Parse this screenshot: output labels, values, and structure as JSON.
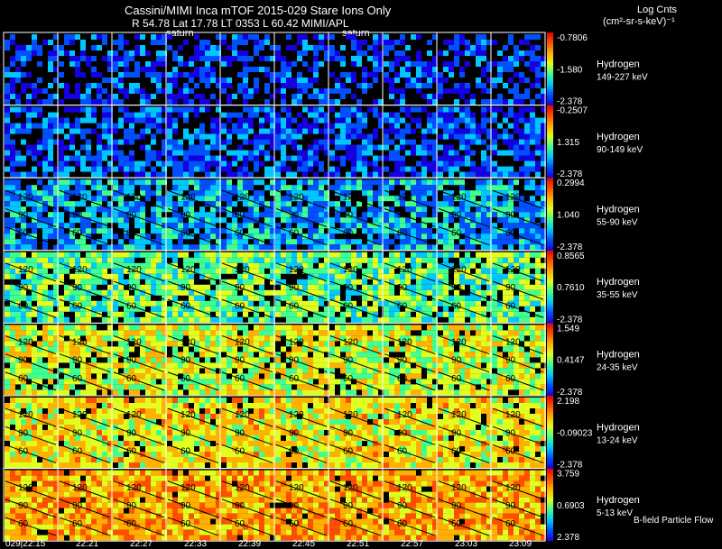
{
  "header": {
    "title_line1": "Cassini/MIMI Inca mTOF  2015-029   Stare   Ions Only",
    "title_line2": "R          54.78 Lat 17.78 LT 0353 L          60.42  MIMI/APL",
    "units_line1": "Log Cnts",
    "units_line2": "(cm²-sr-s-keV)⁻¹",
    "saturn_marks": [
      "saturn",
      "saturn"
    ],
    "flow_label": "B-field Particle Flow"
  },
  "chart_data": {
    "type": "heatmap",
    "title": "Cassini/MIMI Inca mTOF  2015-029   Stare   Ions Only",
    "time_ticks": [
      "029|22:15",
      "22:21",
      "22:27",
      "22:33",
      "22:39",
      "22:45",
      "22:51",
      "22:57",
      "23:03",
      "23:09"
    ],
    "pitch_angle_contours": [
      "120",
      "90",
      "60"
    ],
    "colors": {
      "scale": [
        "#1400e0",
        "#0050ff",
        "#00c8ff",
        "#40ff90",
        "#e0ff20",
        "#ffb000",
        "#ff5000",
        "#e00000"
      ],
      "background": "#000000",
      "grid": "#ffffff"
    },
    "channels": [
      {
        "species": "Hydrogen",
        "energy": "149-227 keV",
        "cb_top": "-0.7806",
        "cb_mid": "-1.580",
        "cb_bot": "-2.378",
        "level": 0.18,
        "fill": 0.55
      },
      {
        "species": "Hydrogen",
        "energy": "90-149 keV",
        "cb_top": "-0.2507",
        "cb_mid": "1.315",
        "cb_bot": "-2.378",
        "level": 0.2,
        "fill": 0.72
      },
      {
        "species": "Hydrogen",
        "energy": "55-90 keV",
        "cb_top": "0.2994",
        "cb_mid": "1.040",
        "cb_bot": "-2.378",
        "level": 0.33,
        "fill": 0.8
      },
      {
        "species": "Hydrogen",
        "energy": "35-55 keV",
        "cb_top": "0.8565",
        "cb_mid": "0.7610",
        "cb_bot": "-2.378",
        "level": 0.52,
        "fill": 0.86
      },
      {
        "species": "Hydrogen",
        "energy": "24-35 keV",
        "cb_top": "1.549",
        "cb_mid": "0.4147",
        "cb_bot": "-2.378",
        "level": 0.64,
        "fill": 0.88
      },
      {
        "species": "Hydrogen",
        "energy": "13-24 keV",
        "cb_top": "2.198",
        "cb_mid": "-0.09023",
        "cb_bot": "-2.378",
        "level": 0.7,
        "fill": 0.95
      },
      {
        "species": "Hydrogen",
        "energy": "5-13 keV",
        "cb_top": "3.759",
        "cb_mid": "0.6903",
        "cb_bot": "2.378",
        "level": 0.8,
        "fill": 0.96
      }
    ]
  }
}
